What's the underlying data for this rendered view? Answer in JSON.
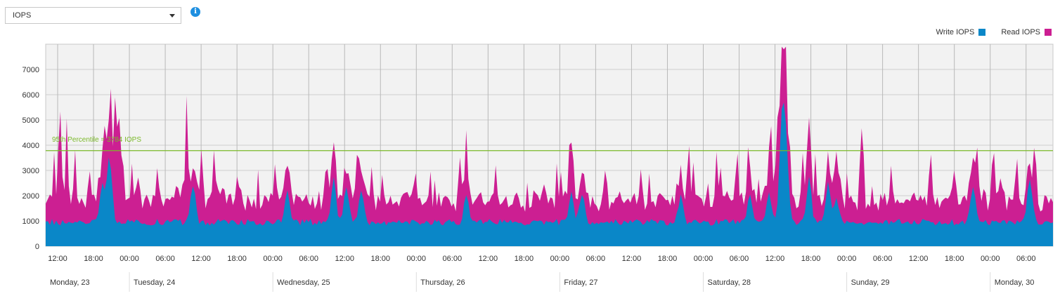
{
  "selector": {
    "value": "IOPS"
  },
  "info_icon": "info-icon",
  "colors": {
    "write": "#0a87c8",
    "read": "#cc1f92",
    "percentile": "#7ab829",
    "plot_bg": "#f2f2f2",
    "grid": "#cfcfcf",
    "vgrid": "#b8b8b8"
  },
  "chart_data": {
    "type": "area",
    "stacked": true,
    "ylim": [
      0,
      8000
    ],
    "y_ticks": [
      0,
      1000,
      2000,
      3000,
      4000,
      5000,
      6000,
      7000
    ],
    "x_range": [
      "2023-10-23T10:00",
      "2023-10-30T10:30"
    ],
    "time_tick_labels": [
      "12:00",
      "18:00",
      "00:00",
      "06:00",
      "12:00",
      "18:00",
      "00:00",
      "06:00",
      "12:00",
      "18:00",
      "00:00",
      "06:00",
      "12:00",
      "18:00",
      "00:00",
      "06:00",
      "12:00",
      "18:00",
      "00:00",
      "06:00",
      "12:00",
      "18:00",
      "00:00",
      "06:00",
      "12:00",
      "18:00",
      "00:00",
      "06:00"
    ],
    "day_labels": [
      "Monday, 23",
      "Tuesday, 24",
      "Wednesday, 25",
      "Thursday, 26",
      "Friday, 27",
      "Saturday, 28",
      "Sunday, 29",
      "Monday, 30"
    ],
    "legend": [
      "Write IOPS",
      "Read IOPS"
    ],
    "legend_placement": "top-right",
    "percentile_line": {
      "value": 3784,
      "label": "95th Percentile = 3784 IOPS"
    },
    "series": [
      {
        "name": "Write IOPS",
        "base": 950,
        "events": [
          [
            27,
            1400
          ],
          [
            30,
            1800
          ],
          [
            31,
            900
          ],
          [
            70,
            1500
          ],
          [
            115,
            1300
          ],
          [
            137,
            1800
          ],
          [
            143,
            1400
          ],
          [
            150,
            1300
          ],
          [
            200,
            1000
          ],
          [
            250,
            1100
          ],
          [
            255,
            1200
          ],
          [
            302,
            1100
          ],
          [
            335,
            1100
          ],
          [
            344,
            1200
          ],
          [
            350,
            3800
          ],
          [
            352,
            3200
          ],
          [
            363,
            1700
          ],
          [
            372,
            1500
          ],
          [
            376,
            1000
          ],
          [
            441,
            1400
          ],
          [
            468,
            1800
          ]
        ]
      },
      {
        "name": "Read IOPS",
        "base": 500,
        "events": [
          [
            4,
            1900
          ],
          [
            7,
            3400
          ],
          [
            10,
            3000
          ],
          [
            14,
            1500
          ],
          [
            21,
            1600
          ],
          [
            28,
            1700
          ],
          [
            31,
            2300
          ],
          [
            33,
            3400
          ],
          [
            34,
            2600
          ],
          [
            35,
            2200
          ],
          [
            44,
            1100
          ],
          [
            53,
            1500
          ],
          [
            63,
            1200
          ],
          [
            67,
            3700
          ],
          [
            74,
            2400
          ],
          [
            80,
            1700
          ],
          [
            91,
            1400
          ],
          [
            109,
            1500
          ],
          [
            133,
            1500
          ],
          [
            134,
            1100
          ],
          [
            137,
            1000
          ],
          [
            148,
            1700
          ],
          [
            155,
            1400
          ],
          [
            160,
            1600
          ],
          [
            176,
            1400
          ],
          [
            197,
            1500
          ],
          [
            214,
            1700
          ],
          [
            245,
            1500
          ],
          [
            250,
            2300
          ],
          [
            266,
            1700
          ],
          [
            283,
            1400
          ],
          [
            306,
            2100
          ],
          [
            319,
            1900
          ],
          [
            329,
            1700
          ],
          [
            345,
            2000
          ],
          [
            348,
            2700
          ],
          [
            350,
            2200
          ],
          [
            352,
            1900
          ],
          [
            360,
            1800
          ],
          [
            363,
            1400
          ],
          [
            366,
            1800
          ],
          [
            376,
            1000
          ],
          [
            388,
            1200
          ],
          [
            402,
            1700
          ],
          [
            421,
            1800
          ],
          [
            432,
            1400
          ],
          [
            443,
            1800
          ],
          [
            450,
            2100
          ],
          [
            454,
            1200
          ],
          [
            462,
            2000
          ],
          [
            471,
            1700
          ]
        ]
      }
    ]
  }
}
